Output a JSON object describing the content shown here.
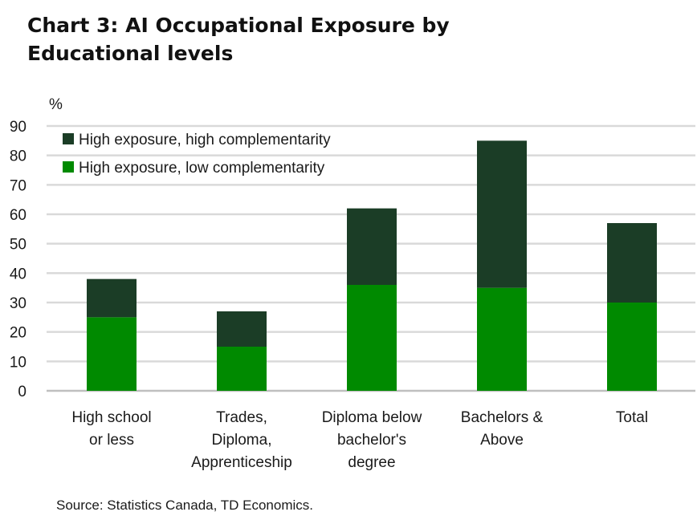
{
  "title": "Chart 3: AI Occupational Exposure by Educational levels",
  "source": "Source: Statistics Canada, TD Economics.",
  "colors": {
    "high_comp": "#1b3d26",
    "low_comp": "#008a00",
    "grid": "#d9d9d9",
    "text": "#1a1a1a"
  },
  "chart_data": {
    "type": "bar",
    "stacked": true,
    "title": "Chart 3: AI Occupational Exposure by Educational levels",
    "ylabel": "%",
    "xlabel": "",
    "ylim": [
      0,
      90
    ],
    "yticks": [
      0,
      10,
      20,
      30,
      40,
      50,
      60,
      70,
      80,
      90
    ],
    "grid": true,
    "legend_position": "top-left",
    "categories": [
      [
        "High school",
        "or less"
      ],
      [
        "Trades,",
        "Diploma,",
        "Apprenticeship"
      ],
      [
        "Diploma below",
        "bachelor's",
        "degree"
      ],
      [
        "Bachelors &",
        "Above"
      ],
      [
        "Total"
      ]
    ],
    "series": [
      {
        "name": "High exposure, low complementarity",
        "color": "#008a00",
        "values": [
          25,
          15,
          36,
          35,
          30
        ]
      },
      {
        "name": "High exposure, high complementarity",
        "color": "#1b3d26",
        "values": [
          13,
          12,
          26,
          50,
          27
        ]
      }
    ],
    "legend_order": [
      1,
      0
    ]
  }
}
